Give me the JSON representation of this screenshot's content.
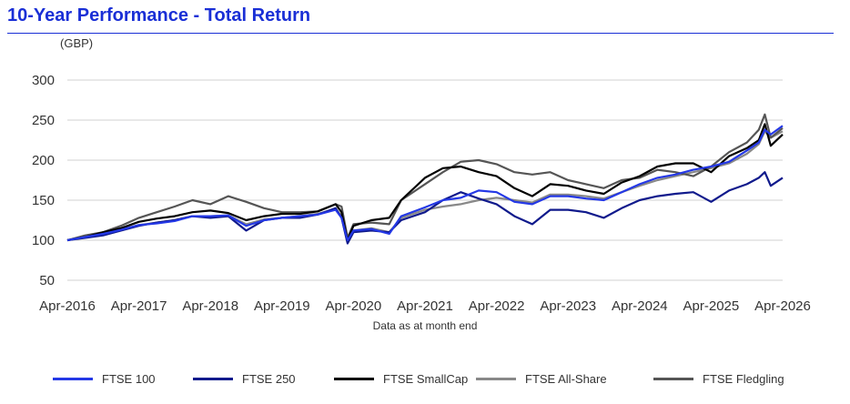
{
  "chart_data": {
    "type": "line",
    "title": "10-Year Performance - Total Return",
    "ylabel": "(GBP)",
    "xlabel": "Data as at month end",
    "ylim": [
      50,
      300
    ],
    "yticks": [
      50,
      100,
      150,
      200,
      250,
      300
    ],
    "xlim": [
      "2016-04",
      "2026-04"
    ],
    "xticks": [
      "Apr-2016",
      "Apr-2017",
      "Apr-2018",
      "Apr-2019",
      "Apr-2020",
      "Apr-2021",
      "Apr-2022",
      "Apr-2023",
      "Apr-2024",
      "Apr-2025",
      "Apr-2026"
    ],
    "grid": true,
    "legend": "bottom",
    "series": [
      {
        "name": "FTSE 100",
        "color": "#2438e6",
        "x": [
          "2016-04",
          "2016-07",
          "2016-10",
          "2017-01",
          "2017-04",
          "2017-07",
          "2017-10",
          "2018-01",
          "2018-04",
          "2018-07",
          "2018-10",
          "2019-01",
          "2019-04",
          "2019-07",
          "2019-10",
          "2020-01",
          "2020-02",
          "2020-03",
          "2020-04",
          "2020-07",
          "2020-10",
          "2020-12",
          "2021-04",
          "2021-07",
          "2021-10",
          "2022-01",
          "2022-04",
          "2022-07",
          "2022-10",
          "2023-01",
          "2023-04",
          "2023-07",
          "2023-10",
          "2024-01",
          "2024-04",
          "2024-07",
          "2024-10",
          "2025-01",
          "2025-04",
          "2025-07",
          "2025-10",
          "2025-12",
          "2026-01",
          "2026-02",
          "2026-04"
        ],
        "values": [
          100,
          104,
          108,
          113,
          119,
          121,
          124,
          130,
          130,
          131,
          118,
          125,
          128,
          130,
          132,
          138,
          128,
          100,
          112,
          114,
          108,
          130,
          141,
          150,
          153,
          162,
          160,
          148,
          145,
          155,
          155,
          152,
          150,
          160,
          170,
          178,
          182,
          188,
          192,
          198,
          212,
          222,
          238,
          232,
          243
        ]
      },
      {
        "name": "FTSE 250",
        "color": "#101a8c",
        "x": [
          "2016-04",
          "2016-07",
          "2016-10",
          "2017-01",
          "2017-04",
          "2017-07",
          "2017-10",
          "2018-01",
          "2018-04",
          "2018-07",
          "2018-10",
          "2019-01",
          "2019-04",
          "2019-07",
          "2019-10",
          "2020-01",
          "2020-02",
          "2020-03",
          "2020-04",
          "2020-07",
          "2020-10",
          "2020-12",
          "2021-04",
          "2021-07",
          "2021-10",
          "2022-01",
          "2022-04",
          "2022-07",
          "2022-10",
          "2023-01",
          "2023-04",
          "2023-07",
          "2023-10",
          "2024-01",
          "2024-04",
          "2024-07",
          "2024-10",
          "2025-01",
          "2025-04",
          "2025-07",
          "2025-10",
          "2025-12",
          "2026-01",
          "2026-02",
          "2026-04"
        ],
        "values": [
          100,
          103,
          106,
          112,
          118,
          122,
          125,
          130,
          128,
          130,
          112,
          125,
          128,
          128,
          132,
          140,
          128,
          96,
          110,
          112,
          110,
          125,
          135,
          150,
          160,
          152,
          145,
          130,
          120,
          138,
          138,
          135,
          128,
          140,
          150,
          155,
          158,
          160,
          148,
          162,
          170,
          178,
          185,
          168,
          178
        ]
      },
      {
        "name": "FTSE SmallCap",
        "color": "#000000",
        "x": [
          "2016-04",
          "2016-07",
          "2016-10",
          "2017-01",
          "2017-04",
          "2017-07",
          "2017-10",
          "2018-01",
          "2018-04",
          "2018-07",
          "2018-10",
          "2019-01",
          "2019-04",
          "2019-07",
          "2019-10",
          "2020-01",
          "2020-02",
          "2020-03",
          "2020-04",
          "2020-07",
          "2020-10",
          "2020-12",
          "2021-04",
          "2021-07",
          "2021-10",
          "2022-01",
          "2022-04",
          "2022-07",
          "2022-10",
          "2023-01",
          "2023-04",
          "2023-07",
          "2023-10",
          "2024-01",
          "2024-04",
          "2024-07",
          "2024-10",
          "2025-01",
          "2025-04",
          "2025-07",
          "2025-10",
          "2025-12",
          "2026-01",
          "2026-02",
          "2026-04"
        ],
        "values": [
          100,
          104,
          110,
          115,
          123,
          127,
          130,
          135,
          137,
          134,
          125,
          130,
          133,
          133,
          136,
          145,
          135,
          100,
          118,
          125,
          128,
          150,
          178,
          190,
          192,
          185,
          180,
          165,
          155,
          170,
          168,
          162,
          158,
          172,
          180,
          192,
          196,
          196,
          185,
          205,
          215,
          225,
          245,
          218,
          232
        ]
      },
      {
        "name": "FTSE All-Share",
        "color": "#888888",
        "x": [
          "2016-04",
          "2016-07",
          "2016-10",
          "2017-01",
          "2017-04",
          "2017-07",
          "2017-10",
          "2018-01",
          "2018-04",
          "2018-07",
          "2018-10",
          "2019-01",
          "2019-04",
          "2019-07",
          "2019-10",
          "2020-01",
          "2020-02",
          "2020-03",
          "2020-04",
          "2020-07",
          "2020-10",
          "2020-12",
          "2021-04",
          "2021-07",
          "2021-10",
          "2022-01",
          "2022-04",
          "2022-07",
          "2022-10",
          "2023-01",
          "2023-04",
          "2023-07",
          "2023-10",
          "2024-01",
          "2024-04",
          "2024-07",
          "2024-10",
          "2025-01",
          "2025-04",
          "2025-07",
          "2025-10",
          "2025-12",
          "2026-01",
          "2026-02",
          "2026-04"
        ],
        "values": [
          100,
          104,
          108,
          113,
          119,
          122,
          125,
          130,
          130,
          131,
          120,
          126,
          128,
          130,
          133,
          139,
          130,
          100,
          112,
          115,
          110,
          128,
          138,
          142,
          145,
          150,
          153,
          150,
          147,
          157,
          157,
          155,
          152,
          160,
          168,
          175,
          180,
          185,
          190,
          196,
          208,
          220,
          236,
          228,
          236
        ]
      },
      {
        "name": "FTSE Fledgling",
        "color": "#555555",
        "x": [
          "2016-04",
          "2016-07",
          "2016-10",
          "2017-01",
          "2017-04",
          "2017-07",
          "2017-10",
          "2018-01",
          "2018-04",
          "2018-07",
          "2018-10",
          "2019-01",
          "2019-04",
          "2019-07",
          "2019-10",
          "2020-01",
          "2020-02",
          "2020-03",
          "2020-04",
          "2020-07",
          "2020-10",
          "2020-12",
          "2021-04",
          "2021-07",
          "2021-10",
          "2022-01",
          "2022-04",
          "2022-07",
          "2022-10",
          "2023-01",
          "2023-04",
          "2023-07",
          "2023-10",
          "2024-01",
          "2024-04",
          "2024-07",
          "2024-10",
          "2025-01",
          "2025-04",
          "2025-07",
          "2025-10",
          "2025-12",
          "2026-01",
          "2026-02",
          "2026-04"
        ],
        "values": [
          100,
          106,
          110,
          118,
          128,
          135,
          142,
          150,
          145,
          155,
          148,
          140,
          135,
          135,
          136,
          145,
          142,
          103,
          120,
          122,
          120,
          150,
          170,
          185,
          198,
          200,
          195,
          185,
          182,
          185,
          175,
          170,
          165,
          175,
          178,
          188,
          185,
          180,
          192,
          210,
          222,
          238,
          257,
          228,
          240
        ]
      }
    ]
  }
}
